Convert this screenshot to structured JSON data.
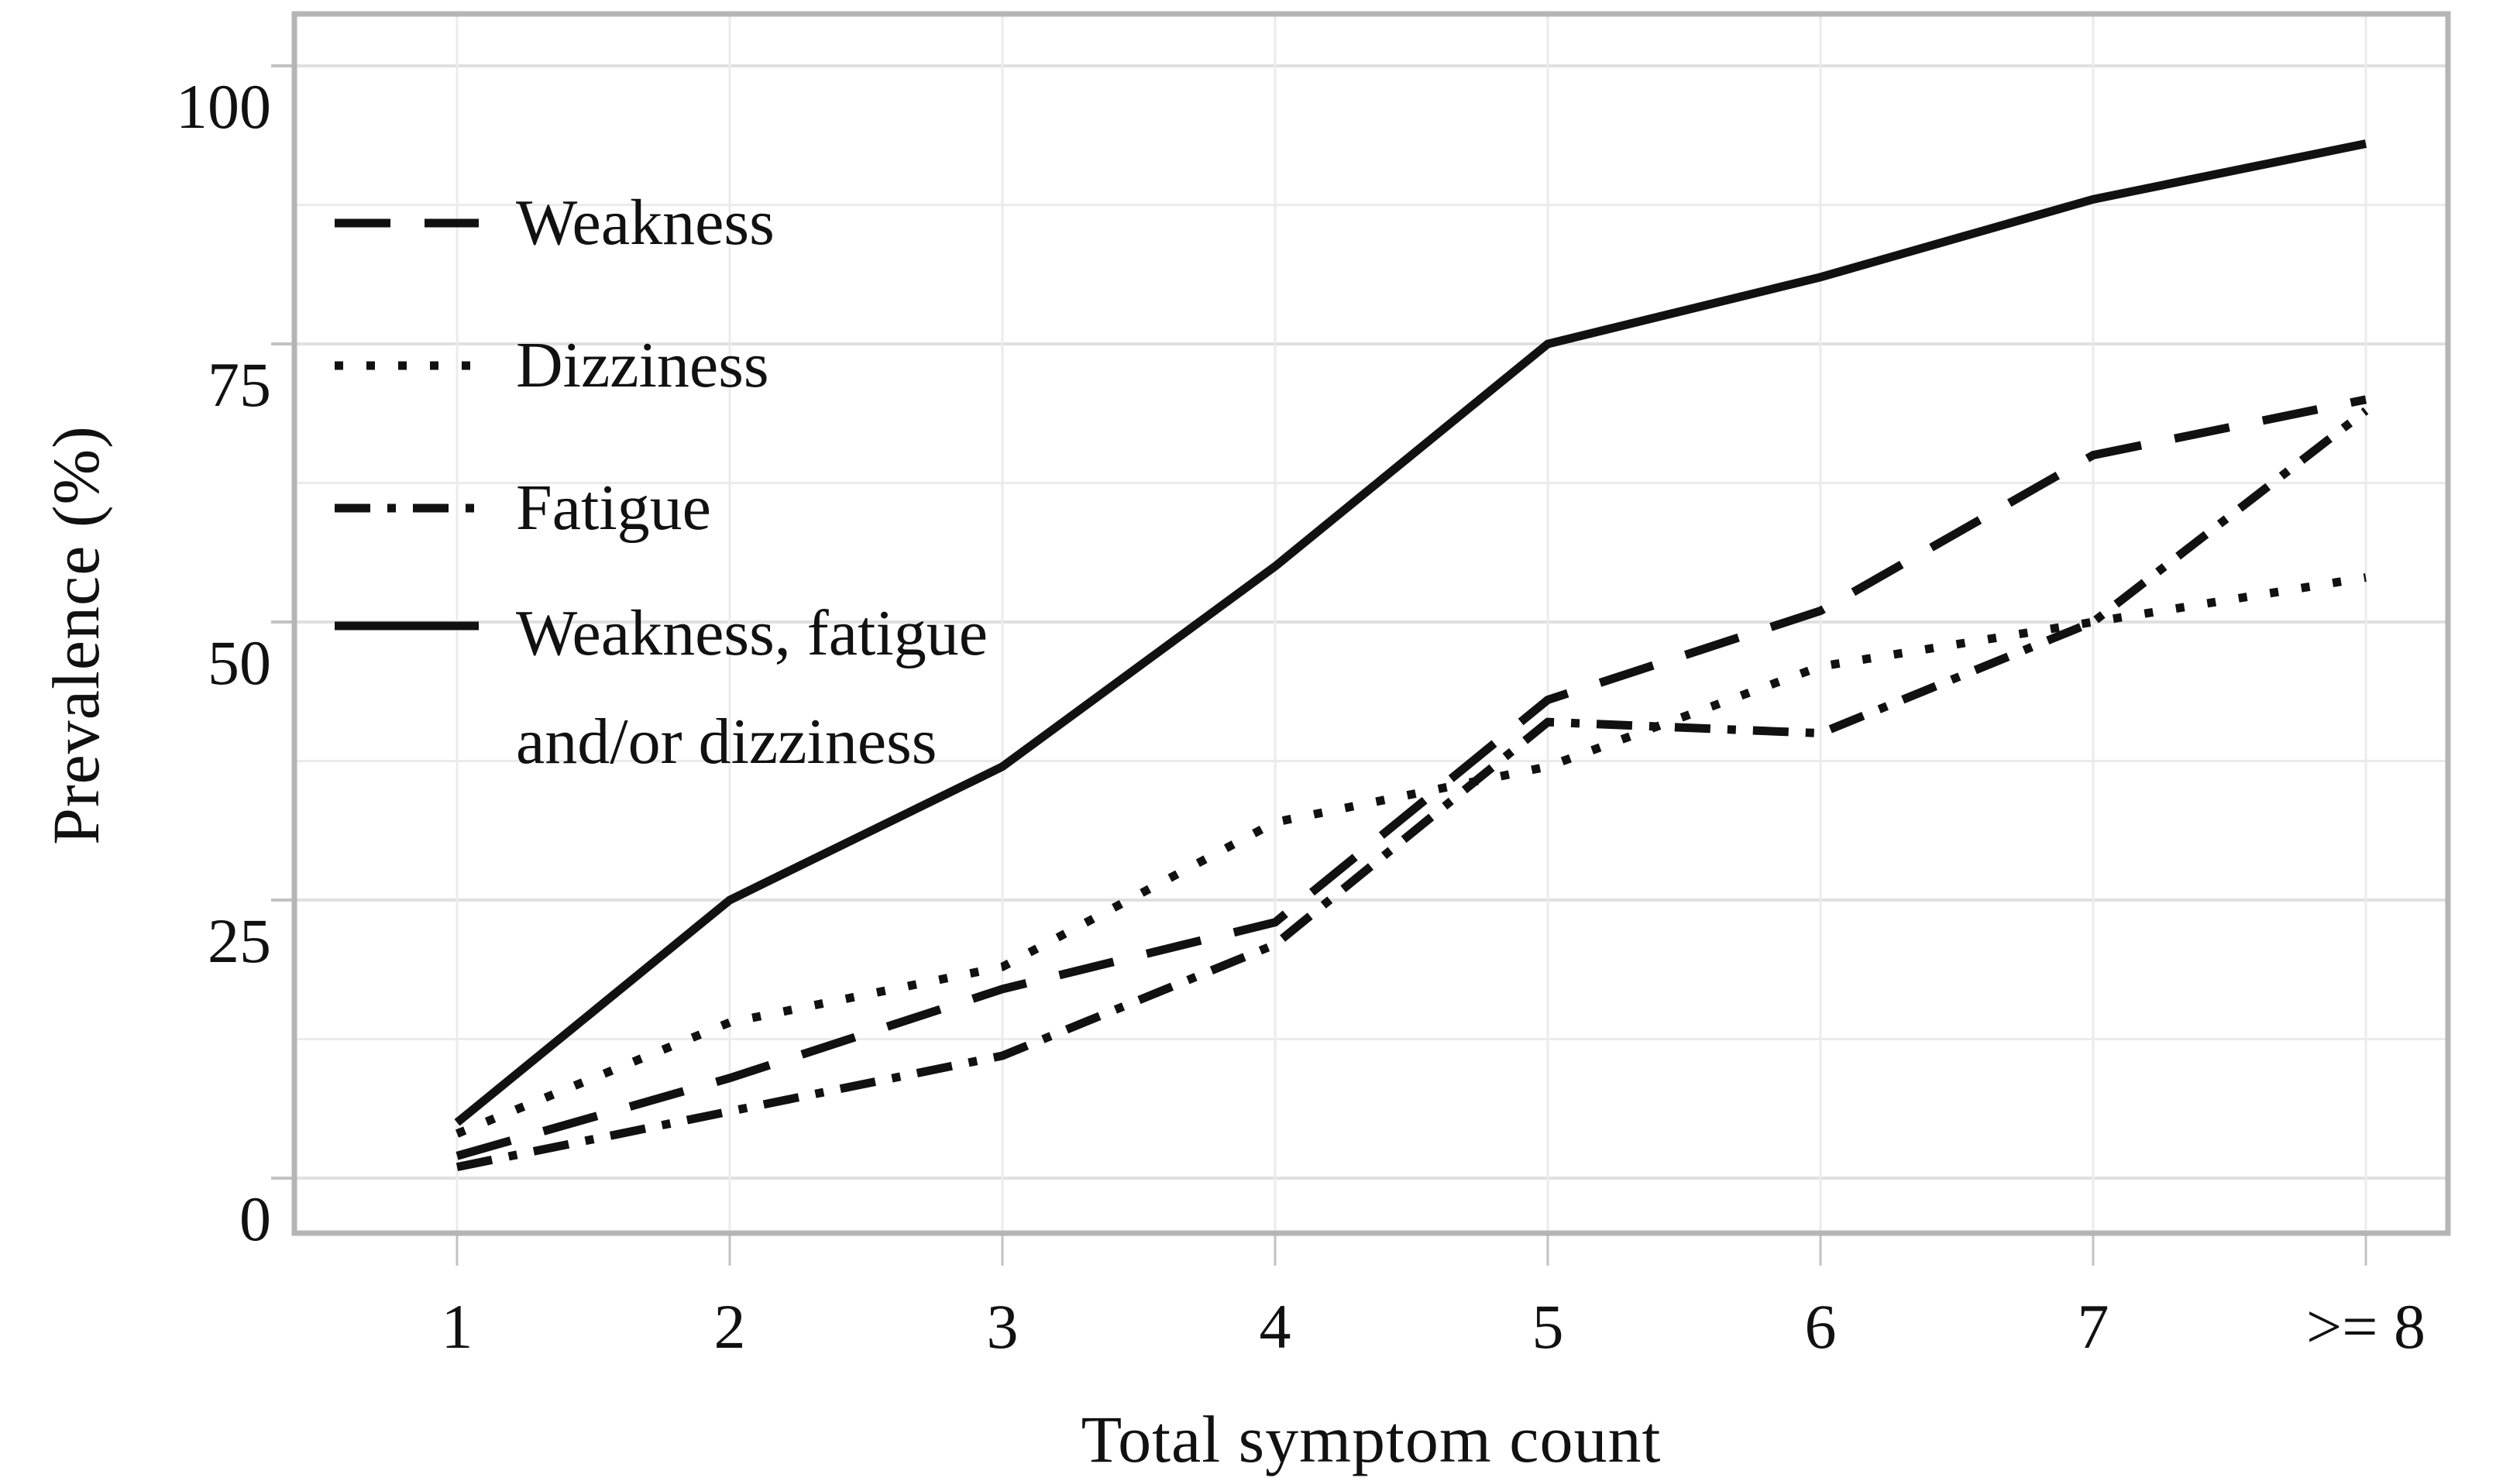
{
  "chart_data": {
    "type": "line",
    "title": "",
    "xlabel": "Total symptom count",
    "ylabel": "Prevalence (%)",
    "categories": [
      "1",
      "2",
      "3",
      "4",
      "5",
      "6",
      "7",
      ">= 8"
    ],
    "x_values": [
      1,
      2,
      3,
      4,
      5,
      6,
      7,
      8
    ],
    "ylim": [
      0,
      100
    ],
    "yticks": [
      0,
      25,
      50,
      75,
      100
    ],
    "ytick_labels": [
      "0",
      "25",
      "50",
      "75",
      "100"
    ],
    "minor_grid_step": 12.5,
    "grid": true,
    "legend_position": "top-left",
    "series": [
      {
        "name": "Weakness",
        "style": "dashed",
        "legend_lines": [
          "Weakness"
        ],
        "values": [
          2,
          9,
          17,
          23,
          43,
          51,
          65,
          70
        ]
      },
      {
        "name": "Dizziness",
        "style": "dotted",
        "legend_lines": [
          "Dizziness"
        ],
        "values": [
          4,
          14,
          19,
          32,
          37,
          46,
          50,
          54
        ]
      },
      {
        "name": "Fatigue",
        "style": "dashdot",
        "legend_lines": [
          "Fatigue"
        ],
        "values": [
          1,
          6,
          11,
          21,
          41,
          40,
          50,
          69
        ]
      },
      {
        "name": "Weakness, fatigue and/or dizziness",
        "style": "solid",
        "legend_lines": [
          "Weakness, fatigue",
          "and/or dizziness"
        ],
        "values": [
          5,
          25,
          37,
          55,
          75,
          81,
          88,
          93
        ]
      }
    ],
    "colors": {
      "line": "#111111",
      "grid_minor": "#ebebeb",
      "grid_major": "#e0e0e0",
      "border": "#b5b5b5",
      "tick": "#c2c2c2",
      "text": "#111111"
    }
  }
}
